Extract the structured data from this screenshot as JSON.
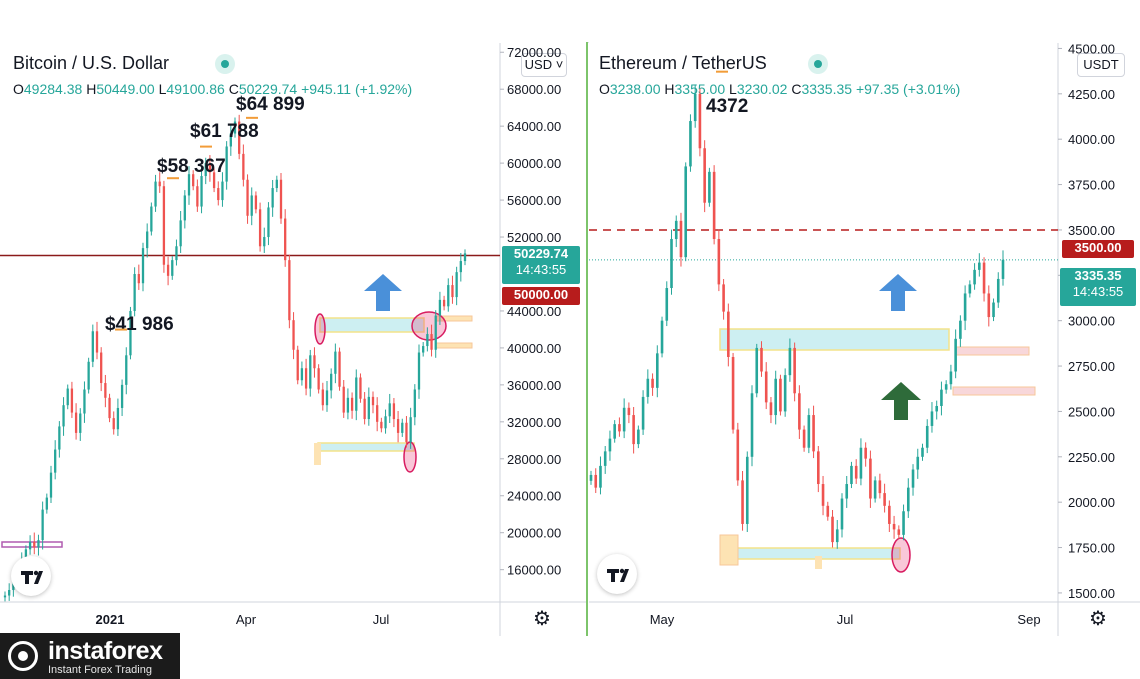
{
  "left": {
    "title": "Bitcoin / U.S. Dollar",
    "currency_button": "USD",
    "ohlc": {
      "o_label": "O",
      "o": "49284.38",
      "h_label": "H",
      "h": "50449.00",
      "l_label": "L",
      "l": "49100.86",
      "c_label": "C",
      "c": "50229.74",
      "change": "+945.11 (+1.92%)"
    },
    "price_tag": {
      "value": "50229.74",
      "time": "14:43:55"
    },
    "level_tag": "50000.00",
    "annotations": [
      "$64 899",
      "$61 788",
      "$58 367",
      "$41 986"
    ]
  },
  "right": {
    "title": "Ethereum / TetherUS",
    "currency_button": "USDT",
    "ohlc": {
      "o_label": "O",
      "o": "3238.00",
      "h_label": "H",
      "h": "3355.00",
      "l_label": "L",
      "l": "3230.02",
      "c_label": "C",
      "c": "3335.35",
      "change": "+97.35 (+3.01%)"
    },
    "price_tag": {
      "value": "3335.35",
      "time": "14:43:55"
    },
    "level_tag": "3500.00",
    "annotations": [
      "4372"
    ]
  },
  "brand": {
    "name": "instaforex",
    "tagline": "Instant Forex Trading"
  },
  "colors": {
    "up": "#26a69a",
    "down": "#ef5350",
    "level_line": "#8b1a1a",
    "level_tag": "#b71c1c",
    "zone_fill": "#cdeff2",
    "zone_border": "#f3e38a",
    "arrow_blue": "#4a90d9",
    "arrow_green": "#2e6b3a"
  },
  "chart_data": [
    {
      "type": "candlestick",
      "title": "Bitcoin / U.S. Dollar",
      "x_ticks": [
        "2021",
        "Apr",
        "Jul"
      ],
      "y_ticks": [
        "72000.00",
        "68000.00",
        "64000.00",
        "60000.00",
        "56000.00",
        "52000.00",
        "44000.00",
        "40000.00",
        "36000.00",
        "32000.00",
        "28000.00",
        "24000.00",
        "20000.00",
        "16000.00"
      ],
      "ylim": [
        12500,
        73000
      ],
      "horizontal_level": 50000,
      "last_price": 50229.74,
      "closes": [
        13200,
        13800,
        14800,
        15800,
        17000,
        18200,
        19000,
        18400,
        19200,
        22500,
        23800,
        26500,
        29000,
        31500,
        33800,
        35600,
        33000,
        30800,
        32900,
        35500,
        38500,
        41800,
        39500,
        36200,
        34600,
        32400,
        31200,
        33500,
        36000,
        39200,
        44000,
        48000,
        47000,
        50800,
        52600,
        55300,
        58000,
        57500,
        49000,
        47800,
        49500,
        51000,
        53800,
        56500,
        58800,
        57500,
        55300,
        58600,
        60000,
        59000,
        57300,
        56000,
        58000,
        61800,
        63200,
        64500,
        61000,
        58200,
        54300,
        56500,
        55000,
        51000,
        52000,
        55200,
        57300,
        58200,
        54000,
        49500,
        43000,
        39800,
        36500,
        37800,
        35600,
        39200,
        37800,
        35500,
        33800,
        35400,
        37200,
        39600,
        35800,
        33000,
        34600,
        33200,
        36800,
        34500,
        32300,
        34700,
        33800,
        32000,
        31300,
        32600,
        34000,
        32300,
        30800,
        31900,
        29800,
        32500,
        35500,
        39500,
        40200,
        41500,
        39800,
        43500,
        45200,
        44500,
        46800,
        45500,
        48200,
        49400,
        50229.74
      ],
      "price_labels": [
        {
          "text": "$64 899",
          "value": 64899
        },
        {
          "text": "$61 788",
          "value": 61788
        },
        {
          "text": "$58 367",
          "value": 58367
        },
        {
          "text": "$41 986",
          "value": 41986
        }
      ]
    },
    {
      "type": "candlestick",
      "title": "Ethereum / TetherUS",
      "x_ticks": [
        "May",
        "Jul",
        "Sep"
      ],
      "y_ticks": [
        "4500.00",
        "4250.00",
        "4000.00",
        "3750.00",
        "3500.00",
        "3250.00",
        "3000.00",
        "2750.00",
        "2500.00",
        "2250.00",
        "2000.00",
        "1750.00",
        "1500.00"
      ],
      "ylim": [
        1450,
        4530
      ],
      "horizontal_level": 3500,
      "last_price": 3335.35,
      "closes": [
        2150,
        2080,
        2200,
        2280,
        2350,
        2430,
        2390,
        2520,
        2480,
        2320,
        2400,
        2580,
        2680,
        2630,
        2820,
        3000,
        3180,
        3450,
        3550,
        3350,
        3850,
        4100,
        4250,
        3950,
        3650,
        3820,
        3450,
        3200,
        3050,
        2800,
        2400,
        2120,
        1880,
        2250,
        2600,
        2850,
        2720,
        2550,
        2480,
        2680,
        2500,
        2700,
        2850,
        2600,
        2400,
        2300,
        2480,
        2280,
        2100,
        1980,
        1920,
        1780,
        1850,
        2020,
        2100,
        2200,
        2130,
        2300,
        2240,
        2020,
        2120,
        2050,
        1980,
        1880,
        1850,
        1820,
        1950,
        2080,
        2180,
        2250,
        2300,
        2420,
        2500,
        2530,
        2620,
        2650,
        2720,
        2900,
        3000,
        3150,
        3200,
        3280,
        3320,
        3150,
        3020,
        3100,
        3230,
        3335.35
      ],
      "price_labels": [
        {
          "text": "4372",
          "value": 4372
        }
      ]
    }
  ]
}
